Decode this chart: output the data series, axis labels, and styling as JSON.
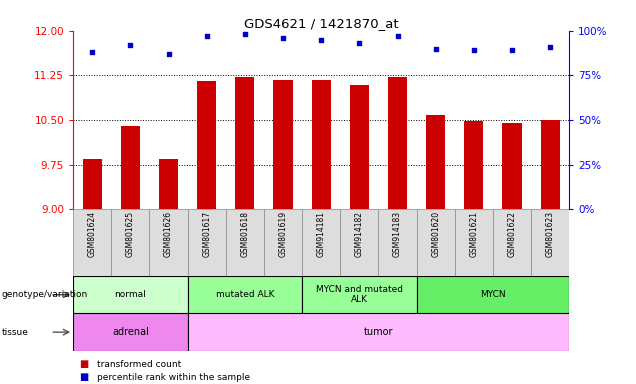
{
  "title": "GDS4621 / 1421870_at",
  "samples": [
    "GSM801624",
    "GSM801625",
    "GSM801626",
    "GSM801617",
    "GSM801618",
    "GSM801619",
    "GSM914181",
    "GSM914182",
    "GSM914183",
    "GSM801620",
    "GSM801621",
    "GSM801622",
    "GSM801623"
  ],
  "bar_values": [
    9.85,
    10.4,
    9.84,
    11.15,
    11.22,
    11.17,
    11.17,
    11.09,
    11.22,
    10.58,
    10.49,
    10.45,
    10.5
  ],
  "dot_values": [
    88,
    92,
    87,
    97,
    98,
    96,
    95,
    93,
    97,
    90,
    89,
    89,
    91
  ],
  "ylim_left": [
    9,
    12
  ],
  "ylim_right": [
    0,
    100
  ],
  "yticks_left": [
    9,
    9.75,
    10.5,
    11.25,
    12
  ],
  "yticks_right": [
    0,
    25,
    50,
    75,
    100
  ],
  "bar_color": "#cc0000",
  "dot_color": "#0000cc",
  "genotype_groups": [
    {
      "label": "normal",
      "start": 0,
      "end": 3,
      "color": "#ccffcc"
    },
    {
      "label": "mutated ALK",
      "start": 3,
      "end": 6,
      "color": "#99ff99"
    },
    {
      "label": "MYCN and mutated\nALK",
      "start": 6,
      "end": 9,
      "color": "#99ff99"
    },
    {
      "label": "MYCN",
      "start": 9,
      "end": 13,
      "color": "#66ee66"
    }
  ],
  "tissue_groups": [
    {
      "label": "adrenal",
      "start": 0,
      "end": 3,
      "color": "#ee88ee"
    },
    {
      "label": "tumor",
      "start": 3,
      "end": 13,
      "color": "#ffbbff"
    }
  ],
  "legend_items": [
    {
      "label": "transformed count",
      "color": "#cc0000"
    },
    {
      "label": "percentile rank within the sample",
      "color": "#0000cc"
    }
  ]
}
